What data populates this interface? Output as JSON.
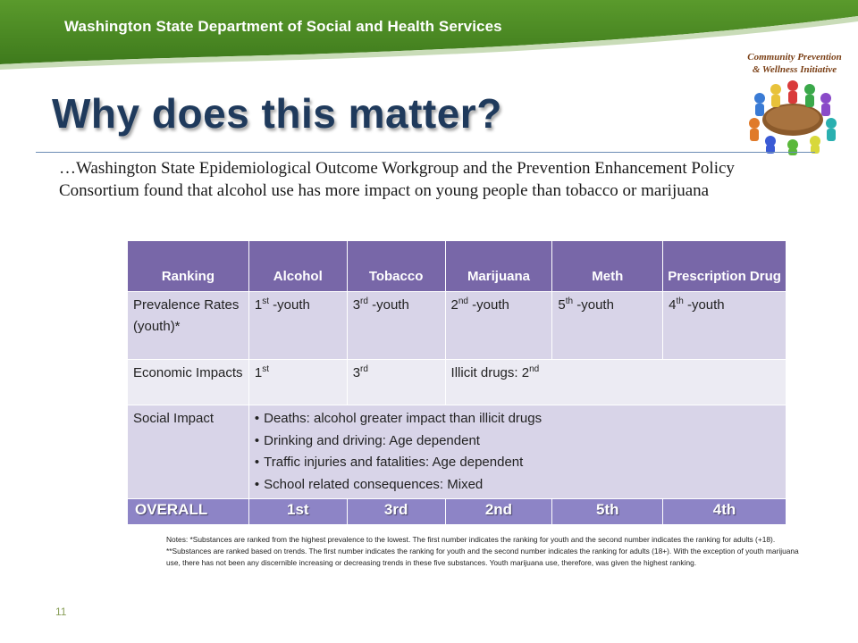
{
  "header": {
    "agency": "Washington State Department of Social and Health Services",
    "banner_color": "#4e8a24"
  },
  "logo": {
    "line1": "Community Prevention",
    "line2": "& Wellness Initiative",
    "icon": "people-around-table-icon"
  },
  "title": "Why does this matter?",
  "intro": "…Washington State Epidemiological Outcome Workgroup and the Prevention Enhancement Policy Consortium found that alcohol use has more impact on young people than tobacco or marijuana",
  "table": {
    "headers": {
      "ranking": "Ranking",
      "alcohol": "Alcohol",
      "tobacco": "Tobacco",
      "marijuana": "Marijuana",
      "meth": "Meth",
      "prescription": "Prescription Drug"
    },
    "prevalence": {
      "label": "Prevalence Rates (youth)*",
      "alcohol": {
        "num": "1",
        "sup": "st",
        "rest": " -youth"
      },
      "tobacco": {
        "num": "3",
        "sup": "rd",
        "rest": " -youth"
      },
      "marijuana": {
        "num": "2",
        "sup": "nd",
        "rest": " -youth"
      },
      "meth": {
        "num": "5",
        "sup": "th",
        "rest": " -youth"
      },
      "prescription": {
        "num": "4",
        "sup": "th",
        "rest": " -youth"
      }
    },
    "economic": {
      "label": "Economic Impacts",
      "alcohol": {
        "num": "1",
        "sup": "st"
      },
      "tobacco": {
        "num": "3",
        "sup": "rd"
      },
      "illicit": {
        "text": "Illicit drugs: 2",
        "sup": "nd"
      }
    },
    "social": {
      "label": "Social Impact",
      "items": [
        "Deaths: alcohol greater impact than illicit drugs",
        "Drinking and driving: Age dependent",
        "Traffic injuries and fatalities: Age dependent",
        "School related consequences: Mixed"
      ]
    },
    "overall": {
      "label": "OVERALL",
      "alcohol": "1st",
      "tobacco": "3rd",
      "marijuana": "2nd",
      "meth": "5th",
      "prescription": "4th"
    }
  },
  "notes": "Notes: *Substances are ranked from the highest prevalence to the lowest. The first number indicates the ranking for youth and the second number indicates the ranking for adults (+18). **Substances are ranked based on trends. The first number indicates the ranking for youth and the second number indicates the ranking for adults (18+). With the exception of youth marijuana use, there has not been any discernible increasing or decreasing trends in these five substances. Youth marijuana use, therefore, was given the highest ranking.",
  "page_number": "11"
}
